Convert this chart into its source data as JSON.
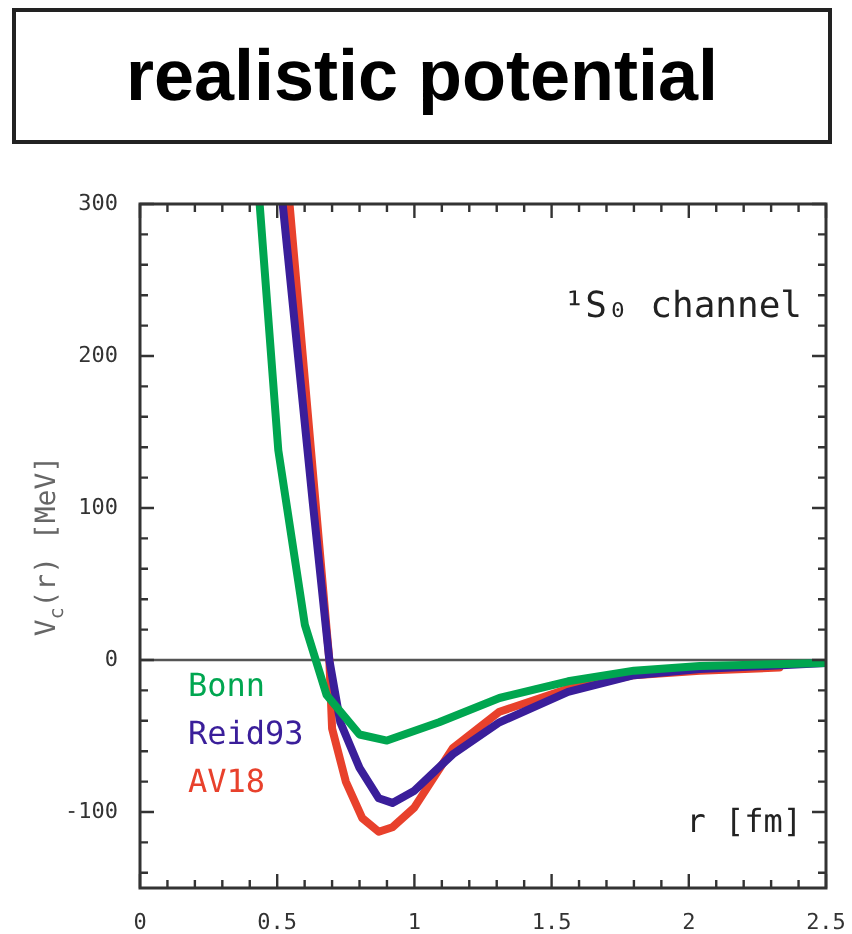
{
  "chart_data": {
    "type": "line",
    "title": "realistic potential",
    "xlabel": "r [fm]",
    "ylabel": "V$_{c}$(r) [MeV]",
    "annotations": [
      "¹S₀ channel"
    ],
    "xlim": [
      0,
      2.5
    ],
    "ylim": [
      -150,
      300
    ],
    "xticks": [
      0,
      {
        "value": 0.1,
        "label": null
      },
      {
        "value": 0.2,
        "label": null
      },
      {
        "value": 0.3,
        "label": null
      },
      {
        "value": 0.4,
        "label": null
      },
      0.5,
      {
        "value": 0.6,
        "label": null
      },
      {
        "value": 0.7,
        "label": null
      },
      {
        "value": 0.8,
        "label": null
      },
      {
        "value": 0.9,
        "label": null
      },
      1,
      {
        "value": 1.1,
        "label": null
      },
      {
        "value": 1.2,
        "label": null
      },
      {
        "value": 1.3,
        "label": null
      },
      {
        "value": 1.4,
        "label": null
      },
      1.5,
      {
        "value": 1.6,
        "label": null
      },
      {
        "value": 1.7,
        "label": null
      },
      {
        "value": 1.8,
        "label": null
      },
      {
        "value": 1.9,
        "label": null
      },
      2,
      {
        "value": 2.1,
        "label": null
      },
      {
        "value": 2.2,
        "label": null
      },
      {
        "value": 2.3,
        "label": null
      },
      {
        "value": 2.4,
        "label": null
      },
      2.5
    ],
    "yticks": [
      {
        "value": -140,
        "label": null
      },
      {
        "value": -120,
        "label": null
      },
      -100,
      {
        "value": -80,
        "label": null
      },
      {
        "value": -60,
        "label": null
      },
      {
        "value": -40,
        "label": null
      },
      {
        "value": -20,
        "label": null
      },
      0,
      {
        "value": 20,
        "label": null
      },
      {
        "value": 40,
        "label": null
      },
      {
        "value": 60,
        "label": null
      },
      {
        "value": 80,
        "label": null
      },
      100,
      {
        "value": 120,
        "label": null
      },
      {
        "value": 140,
        "label": null
      },
      {
        "value": 160,
        "label": null
      },
      {
        "value": 180,
        "label": null
      },
      200,
      {
        "value": 220,
        "label": null
      },
      {
        "value": 240,
        "label": null
      },
      {
        "value": 260,
        "label": null
      },
      {
        "value": 280,
        "label": null
      },
      300
    ],
    "ref_lines": [
      {
        "axis": "y",
        "value": 0,
        "color": "#555555"
      }
    ],
    "legend": "bottom left",
    "grid": false,
    "marker": "none",
    "line_style": "solid",
    "series": [
      {
        "name": "Bonn",
        "color": "#00a650",
        "x": [
          0.436,
          0.504,
          0.601,
          0.68,
          0.8,
          0.9,
          1.09,
          1.31,
          1.56,
          1.8,
          2.04,
          2.5
        ],
        "values": [
          300,
          138,
          23,
          -23,
          -49,
          -53,
          -41,
          -25,
          -14,
          -7,
          -4,
          -2
        ]
      },
      {
        "name": "Reid93",
        "color": "#3a1e9a",
        "x": [
          0.52,
          0.63,
          0.69,
          0.73,
          0.8,
          0.87,
          0.92,
          1.0,
          1.14,
          1.31,
          1.56,
          1.8,
          2.04,
          2.5
        ],
        "values": [
          300,
          103,
          0,
          -41,
          -71,
          -91,
          -94,
          -86,
          -62,
          -41,
          -21,
          -10,
          -6,
          -2
        ]
      },
      {
        "name": "AV18",
        "color": "#e8412c",
        "x": [
          0.545,
          0.64,
          0.69,
          0.7,
          0.75,
          0.81,
          0.87,
          0.92,
          1.0,
          1.14,
          1.31,
          1.56,
          1.8,
          2.04,
          2.33
        ],
        "values": [
          300,
          103,
          0,
          -45,
          -80,
          -104,
          -113,
          -110,
          -97,
          -58,
          -34,
          -19,
          -10,
          -7,
          -5
        ]
      }
    ]
  }
}
